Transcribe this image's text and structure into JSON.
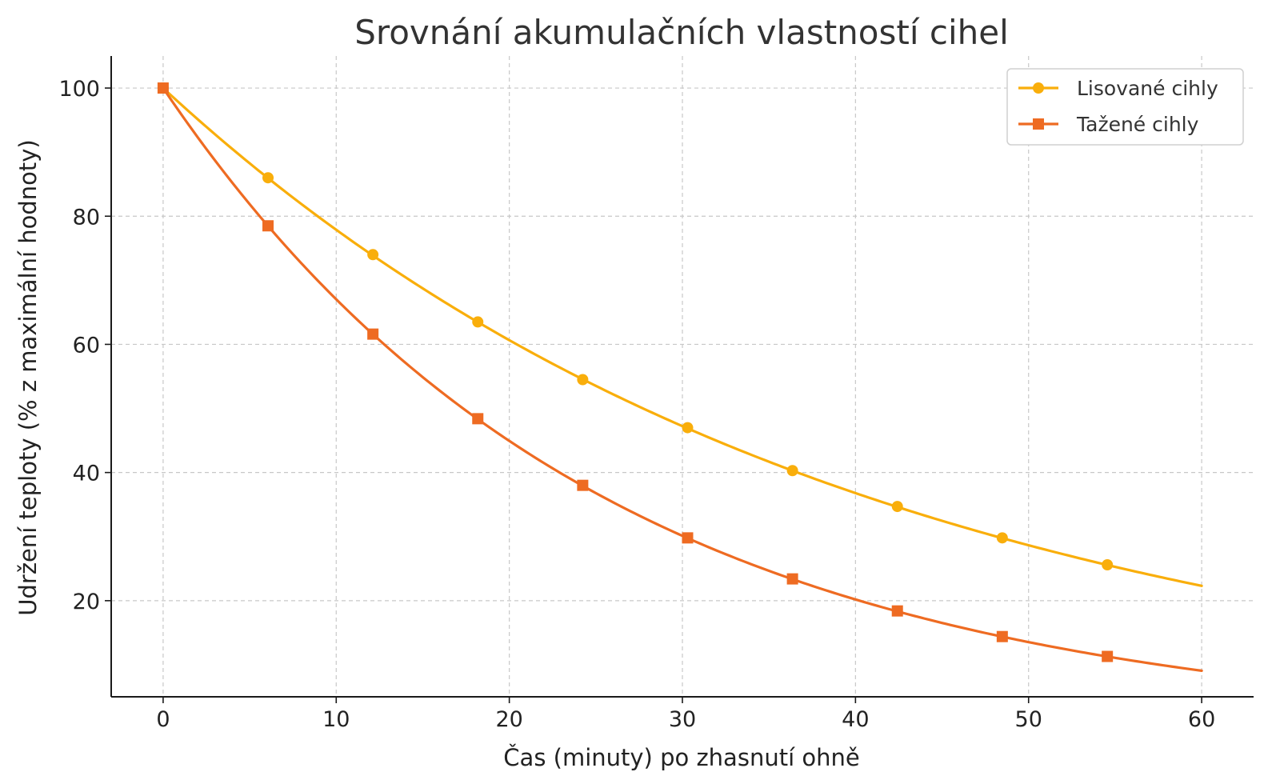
{
  "chart_data": {
    "type": "line",
    "title": "Srovnání akumulačních vlastností cihel",
    "xlabel": "Čas (minuty) po zhasnutí ohně",
    "ylabel": "Udržení teploty (% z maximální hodnoty)",
    "xlim": [
      -3,
      63
    ],
    "ylim": [
      5,
      105
    ],
    "xticks": [
      0,
      10,
      20,
      30,
      40,
      50,
      60
    ],
    "yticks": [
      20,
      40,
      60,
      80,
      100
    ],
    "grid": true,
    "legend_position": "top-right",
    "series": [
      {
        "name": "Lisované cihly",
        "color": "#F9AE0B",
        "marker": "circle",
        "line_decay_rate": 0.025,
        "x": [
          0,
          6.06,
          12.12,
          18.18,
          24.24,
          30.3,
          36.36,
          42.42,
          48.48,
          54.55
        ],
        "values": [
          100,
          86,
          74,
          63.5,
          54.5,
          47,
          40.3,
          34.7,
          29.8,
          25.6
        ],
        "line_end": [
          60,
          22.3
        ]
      },
      {
        "name": "Tažené cihly",
        "color": "#EE6B22",
        "marker": "square",
        "line_decay_rate": 0.04,
        "x": [
          0,
          6.06,
          12.12,
          18.18,
          24.24,
          30.3,
          36.36,
          42.42,
          48.48,
          54.55
        ],
        "values": [
          100,
          78.5,
          61.6,
          48.4,
          38,
          29.8,
          23.4,
          18.4,
          14.4,
          11.3
        ],
        "line_end": [
          60,
          9.1
        ]
      }
    ]
  }
}
